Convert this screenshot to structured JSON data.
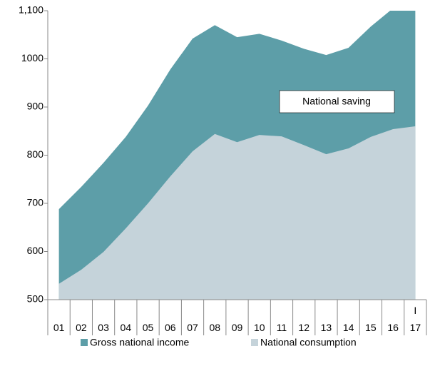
{
  "chart_data": {
    "type": "area",
    "categories": [
      "01",
      "02",
      "03",
      "04",
      "05",
      "06",
      "07",
      "08",
      "09",
      "10",
      "11",
      "12",
      "13",
      "14",
      "15",
      "16",
      "I\n17"
    ],
    "series": [
      {
        "name": "Gross national income",
        "color": "#5d9ea8",
        "values": [
          688,
          734,
          784,
          838,
          903,
          978,
          1042,
          1070,
          1045,
          1052,
          1038,
          1021,
          1008,
          1023,
          1067,
          1105,
          1125
        ]
      },
      {
        "name": "National consumption",
        "color": "#c5d3da",
        "values": [
          533,
          562,
          599,
          648,
          700,
          756,
          808,
          844,
          827,
          842,
          839,
          821,
          802,
          814,
          838,
          854,
          860
        ]
      }
    ],
    "ylim": [
      500,
      1100
    ],
    "yticks": [
      500,
      600,
      700,
      800,
      900,
      1000,
      {
        "value": 1100,
        "label": "1,100"
      }
    ],
    "annotations": [
      "National saving"
    ],
    "legend": "bottom"
  }
}
